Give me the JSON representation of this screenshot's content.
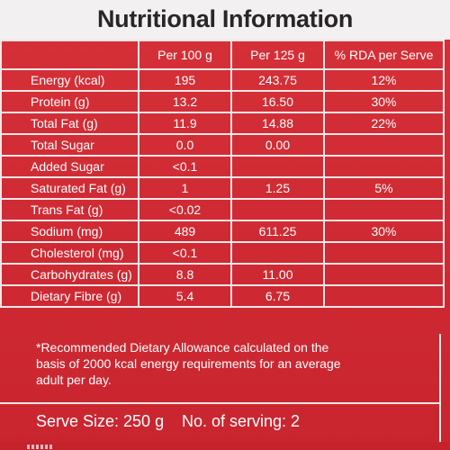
{
  "title": "Nutritional Information",
  "columns": [
    "",
    "Per 100 g",
    "Per 125 g",
    "% RDA per Serve"
  ],
  "rows": [
    {
      "nutrient": "Energy (kcal)",
      "per100": "195",
      "per125": "243.75",
      "rda": "12%"
    },
    {
      "nutrient": "Protein (g)",
      "per100": "13.2",
      "per125": "16.50",
      "rda": "30%"
    },
    {
      "nutrient": "Total Fat (g)",
      "per100": "11.9",
      "per125": "14.88",
      "rda": "22%"
    },
    {
      "nutrient": "Total Sugar",
      "per100": "0.0",
      "per125": "0.00",
      "rda": ""
    },
    {
      "nutrient": "Added Sugar",
      "per100": "<0.1",
      "per125": "",
      "rda": ""
    },
    {
      "nutrient": "Saturated Fat (g)",
      "per100": "1",
      "per125": "1.25",
      "rda": "5%"
    },
    {
      "nutrient": "Trans Fat (g)",
      "per100": "<0.02",
      "per125": "",
      "rda": ""
    },
    {
      "nutrient": "Sodium (mg)",
      "per100": "489",
      "per125": "611.25",
      "rda": "30%"
    },
    {
      "nutrient": "Cholesterol (mg)",
      "per100": "<0.1",
      "per125": "",
      "rda": ""
    },
    {
      "nutrient": "Carbohydrates (g)",
      "per100": "8.8",
      "per125": "11.00",
      "rda": ""
    },
    {
      "nutrient": "Dietary Fibre (g)",
      "per100": "5.4",
      "per125": "6.75",
      "rda": ""
    }
  ],
  "footnote": "*Recommended Dietary Allowance calculated on the basis of 2000 kcal energy requirements for an average adult per day.",
  "serve_size": "Serve Size: 250 g",
  "servings": "No. of serving: 2",
  "colors": {
    "panel": "#d8323a",
    "title_bar": "#f2f0f0",
    "title_text": "#2a2628",
    "lines": "#f3e6e7"
  }
}
